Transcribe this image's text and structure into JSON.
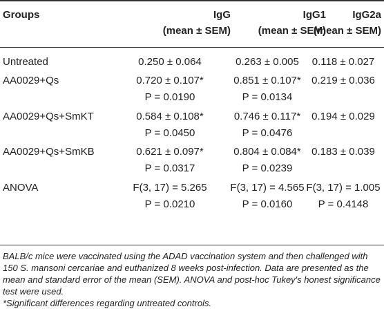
{
  "table": {
    "headers": {
      "groups": "Groups",
      "igg_line1": "IgG",
      "igg_line2": "(mean ± SEM)",
      "igg1_line1": "IgG1",
      "igg1_line2": "(mean ± SEM)",
      "igg2a_line1": "IgG2a",
      "igg2a_line2": "(mean ± SEM)"
    },
    "rows": [
      {
        "group": "Untreated",
        "igg": "0.250 ± 0.064",
        "igg1": "0.263 ± 0.005",
        "igg2a": "0.118 ± 0.027"
      },
      {
        "group": "AA0029+Qs",
        "igg": "0.720 ± 0.107*",
        "igg1": "0.851 ± 0.107*",
        "igg2a": "0.219 ± 0.036",
        "igg_p": "P = 0.0190",
        "igg1_p": "P = 0.0134"
      },
      {
        "group": "AA0029+Qs+SmKT",
        "igg": "0.584 ± 0.108*",
        "igg1": "0.746 ± 0.117*",
        "igg2a": "0.194 ± 0.029",
        "igg_p": "P = 0.0450",
        "igg1_p": "P = 0.0476"
      },
      {
        "group": "AA0029+Qs+SmKB",
        "igg": "0.621 ± 0.097*",
        "igg1": "0.804 ± 0.084*",
        "igg2a": "0.183 ± 0.039",
        "igg_p": "P = 0.0317",
        "igg1_p": "P = 0.0239"
      },
      {
        "group": "ANOVA",
        "igg": "F(3, 17) = 5.265",
        "igg1": "F(3, 17) = 4.565",
        "igg2a": "F(3, 17) = 1.005",
        "igg_p": "P = 0.0210",
        "igg1_p": "P = 0.0160",
        "igg2a_p": "P = 0.4148"
      }
    ]
  },
  "footnotes": {
    "main": "BALB/c mice were vaccinated using the ADAD vaccination system and then challenged with 150 S. mansoni cercariae and euthanized 8 weeks post-infection. Data are presented as the mean and standard error of the mean (SEM). ANOVA and post-hoc Tukey's honest significance test were used.",
    "significance": "*Significant differences regarding untreated controls."
  }
}
